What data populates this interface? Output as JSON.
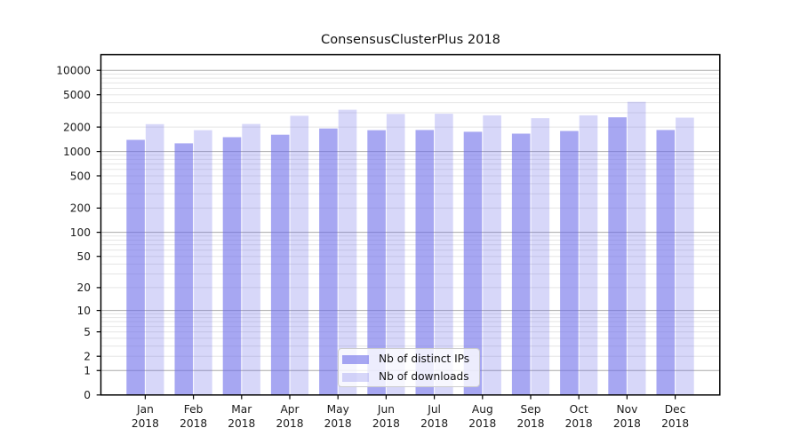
{
  "chart_data": {
    "type": "bar",
    "title": "ConsensusClusterPlus 2018",
    "xlabel": "",
    "ylabel": "",
    "year_label": "2018",
    "categories": [
      "Jan",
      "Feb",
      "Mar",
      "Apr",
      "May",
      "Jun",
      "Jul",
      "Aug",
      "Sep",
      "Oct",
      "Nov",
      "Dec"
    ],
    "series": [
      {
        "name": "Nb of distinct IPs",
        "values": [
          1390,
          1260,
          1500,
          1610,
          1920,
          1830,
          1840,
          1750,
          1660,
          1790,
          2640,
          1840
        ]
      },
      {
        "name": "Nb of downloads",
        "values": [
          2170,
          1830,
          2180,
          2750,
          3270,
          2900,
          2920,
          2790,
          2570,
          2790,
          4090,
          2610
        ]
      }
    ],
    "y_scale": "log10(1+x)",
    "y_ticks": [
      0,
      1,
      2,
      5,
      10,
      20,
      50,
      100,
      200,
      500,
      1000,
      2000,
      5000,
      10000
    ],
    "ylim": [
      0,
      15500
    ],
    "grid": true,
    "legend_position": "lower-center-inside",
    "colors": {
      "bar_distinct_ips": "rgba(109,109,233,0.60)",
      "bar_downloads": "rgba(109,109,233,0.27)",
      "bar_distinct_ips_hex": "#a7a7f1",
      "bar_downloads_hex": "#d8d8f9",
      "major_gridline": "#a9a9a9",
      "minor_gridline": "#e5e5e5",
      "axis": "#000000",
      "text": "#1a1a1a"
    }
  }
}
